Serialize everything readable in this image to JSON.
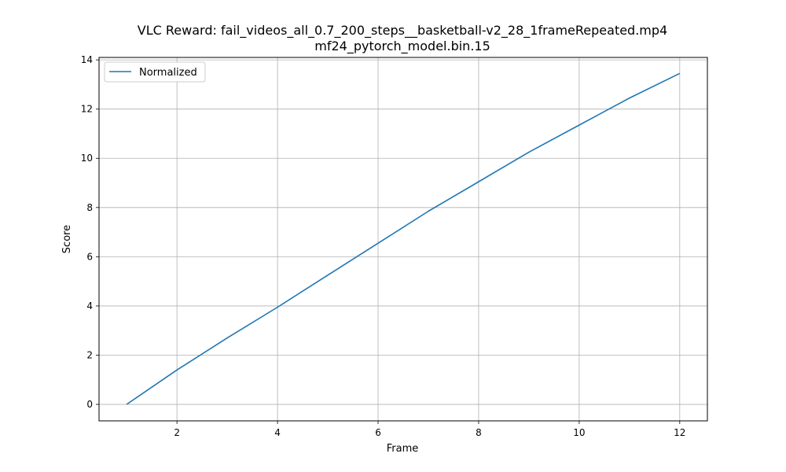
{
  "chart_data": {
    "type": "line",
    "title": "VLC Reward: fail_videos_all_0.7_200_steps__basketball-v2_28_1frameRepeated.mp4",
    "subtitle": "mf24_pytorch_model.bin.15",
    "xlabel": "Frame",
    "ylabel": "Score",
    "xlim": [
      0.45,
      12.55
    ],
    "ylim": [
      -0.67,
      14.1
    ],
    "x_ticks": [
      2,
      4,
      6,
      8,
      10,
      12
    ],
    "y_ticks": [
      0,
      2,
      4,
      6,
      8,
      10,
      12,
      14
    ],
    "grid": true,
    "legend_position": "upper-left",
    "series": [
      {
        "name": "Normalized",
        "color": "#1f77b4",
        "x": [
          1,
          2,
          3,
          4,
          5,
          6,
          7,
          8,
          9,
          10,
          11,
          12
        ],
        "values": [
          0.0,
          1.4,
          2.7,
          3.95,
          5.25,
          6.55,
          7.85,
          9.05,
          10.25,
          11.35,
          12.45,
          13.45
        ]
      }
    ]
  }
}
